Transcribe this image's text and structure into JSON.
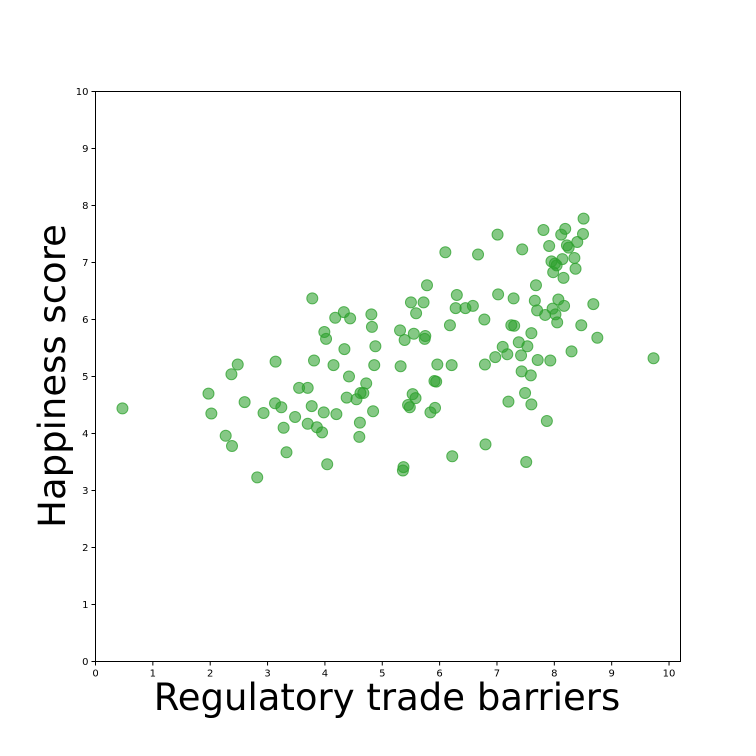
{
  "chart_data": {
    "type": "scatter",
    "xlabel": "Regulatory trade barriers",
    "ylabel": "Happiness score",
    "xlim": [
      0,
      10.2
    ],
    "ylim": [
      0,
      10
    ],
    "xticks": [
      0,
      1,
      2,
      3,
      4,
      5,
      6,
      7,
      8,
      9,
      10
    ],
    "yticks": [
      0,
      1,
      2,
      3,
      4,
      5,
      6,
      7,
      8,
      9,
      10
    ],
    "grid": false,
    "marker_color": "#2ca02c",
    "points": [
      [
        0.47,
        4.44
      ],
      [
        1.97,
        4.7
      ],
      [
        2.02,
        4.35
      ],
      [
        2.27,
        3.96
      ],
      [
        2.37,
        5.04
      ],
      [
        2.38,
        3.78
      ],
      [
        2.48,
        5.21
      ],
      [
        2.6,
        4.55
      ],
      [
        2.82,
        3.23
      ],
      [
        2.93,
        4.36
      ],
      [
        3.13,
        4.53
      ],
      [
        3.14,
        5.26
      ],
      [
        3.24,
        4.46
      ],
      [
        3.28,
        4.1
      ],
      [
        3.33,
        3.67
      ],
      [
        3.48,
        4.29
      ],
      [
        3.55,
        4.8
      ],
      [
        3.7,
        4.8
      ],
      [
        3.7,
        4.17
      ],
      [
        3.77,
        4.48
      ],
      [
        3.78,
        6.37
      ],
      [
        3.81,
        5.28
      ],
      [
        3.86,
        4.11
      ],
      [
        3.95,
        4.02
      ],
      [
        3.98,
        4.37
      ],
      [
        3.99,
        5.78
      ],
      [
        4.02,
        5.66
      ],
      [
        4.04,
        3.46
      ],
      [
        4.15,
        5.2
      ],
      [
        4.18,
        6.03
      ],
      [
        4.2,
        4.34
      ],
      [
        4.33,
        6.13
      ],
      [
        4.34,
        5.48
      ],
      [
        4.38,
        4.63
      ],
      [
        4.42,
        5.0
      ],
      [
        4.44,
        6.02
      ],
      [
        4.55,
        4.6
      ],
      [
        4.6,
        3.94
      ],
      [
        4.61,
        4.19
      ],
      [
        4.62,
        4.71
      ],
      [
        4.67,
        4.71
      ],
      [
        4.72,
        4.88
      ],
      [
        4.81,
        6.09
      ],
      [
        4.82,
        5.87
      ],
      [
        4.84,
        4.39
      ],
      [
        4.86,
        5.2
      ],
      [
        4.88,
        5.53
      ],
      [
        5.31,
        5.81
      ],
      [
        5.32,
        5.18
      ],
      [
        5.36,
        3.35
      ],
      [
        5.37,
        3.41
      ],
      [
        5.39,
        5.64
      ],
      [
        5.45,
        4.5
      ],
      [
        5.48,
        4.46
      ],
      [
        5.5,
        6.3
      ],
      [
        5.53,
        4.69
      ],
      [
        5.55,
        5.75
      ],
      [
        5.58,
        4.62
      ],
      [
        5.59,
        6.11
      ],
      [
        5.72,
        6.3
      ],
      [
        5.74,
        5.66
      ],
      [
        5.75,
        5.71
      ],
      [
        5.78,
        6.6
      ],
      [
        5.84,
        4.37
      ],
      [
        5.91,
        4.92
      ],
      [
        5.92,
        4.45
      ],
      [
        5.94,
        4.91
      ],
      [
        5.96,
        5.21
      ],
      [
        6.1,
        7.18
      ],
      [
        6.18,
        5.9
      ],
      [
        6.21,
        5.2
      ],
      [
        6.22,
        3.6
      ],
      [
        6.28,
        6.2
      ],
      [
        6.3,
        6.43
      ],
      [
        6.45,
        6.2
      ],
      [
        6.58,
        6.24
      ],
      [
        6.67,
        7.14
      ],
      [
        6.78,
        6.0
      ],
      [
        6.79,
        5.21
      ],
      [
        6.8,
        3.81
      ],
      [
        6.97,
        5.34
      ],
      [
        7.01,
        7.49
      ],
      [
        7.02,
        6.44
      ],
      [
        7.1,
        5.52
      ],
      [
        7.18,
        5.39
      ],
      [
        7.2,
        4.56
      ],
      [
        7.25,
        5.9
      ],
      [
        7.29,
        6.37
      ],
      [
        7.3,
        5.89
      ],
      [
        7.38,
        5.6
      ],
      [
        7.42,
        5.37
      ],
      [
        7.43,
        5.09
      ],
      [
        7.44,
        7.23
      ],
      [
        7.49,
        4.71
      ],
      [
        7.51,
        3.5
      ],
      [
        7.53,
        5.53
      ],
      [
        7.59,
        5.02
      ],
      [
        7.6,
        5.76
      ],
      [
        7.6,
        4.51
      ],
      [
        7.66,
        6.33
      ],
      [
        7.68,
        6.6
      ],
      [
        7.7,
        6.16
      ],
      [
        7.71,
        5.29
      ],
      [
        7.81,
        7.57
      ],
      [
        7.84,
        6.08
      ],
      [
        7.87,
        4.22
      ],
      [
        7.91,
        7.29
      ],
      [
        7.93,
        5.28
      ],
      [
        7.95,
        7.02
      ],
      [
        7.97,
        6.19
      ],
      [
        7.98,
        6.83
      ],
      [
        8.01,
        6.98
      ],
      [
        8.02,
        6.09
      ],
      [
        8.04,
        6.95
      ],
      [
        8.05,
        5.95
      ],
      [
        8.07,
        6.35
      ],
      [
        8.12,
        7.49
      ],
      [
        8.14,
        7.06
      ],
      [
        8.16,
        6.73
      ],
      [
        8.17,
        6.24
      ],
      [
        8.19,
        7.59
      ],
      [
        8.22,
        7.3
      ],
      [
        8.25,
        7.26
      ],
      [
        8.3,
        5.44
      ],
      [
        8.35,
        7.08
      ],
      [
        8.37,
        6.89
      ],
      [
        8.4,
        7.36
      ],
      [
        8.47,
        5.9
      ],
      [
        8.5,
        7.5
      ],
      [
        8.51,
        7.77
      ],
      [
        8.68,
        6.27
      ],
      [
        8.75,
        5.68
      ],
      [
        9.73,
        5.32
      ]
    ]
  }
}
